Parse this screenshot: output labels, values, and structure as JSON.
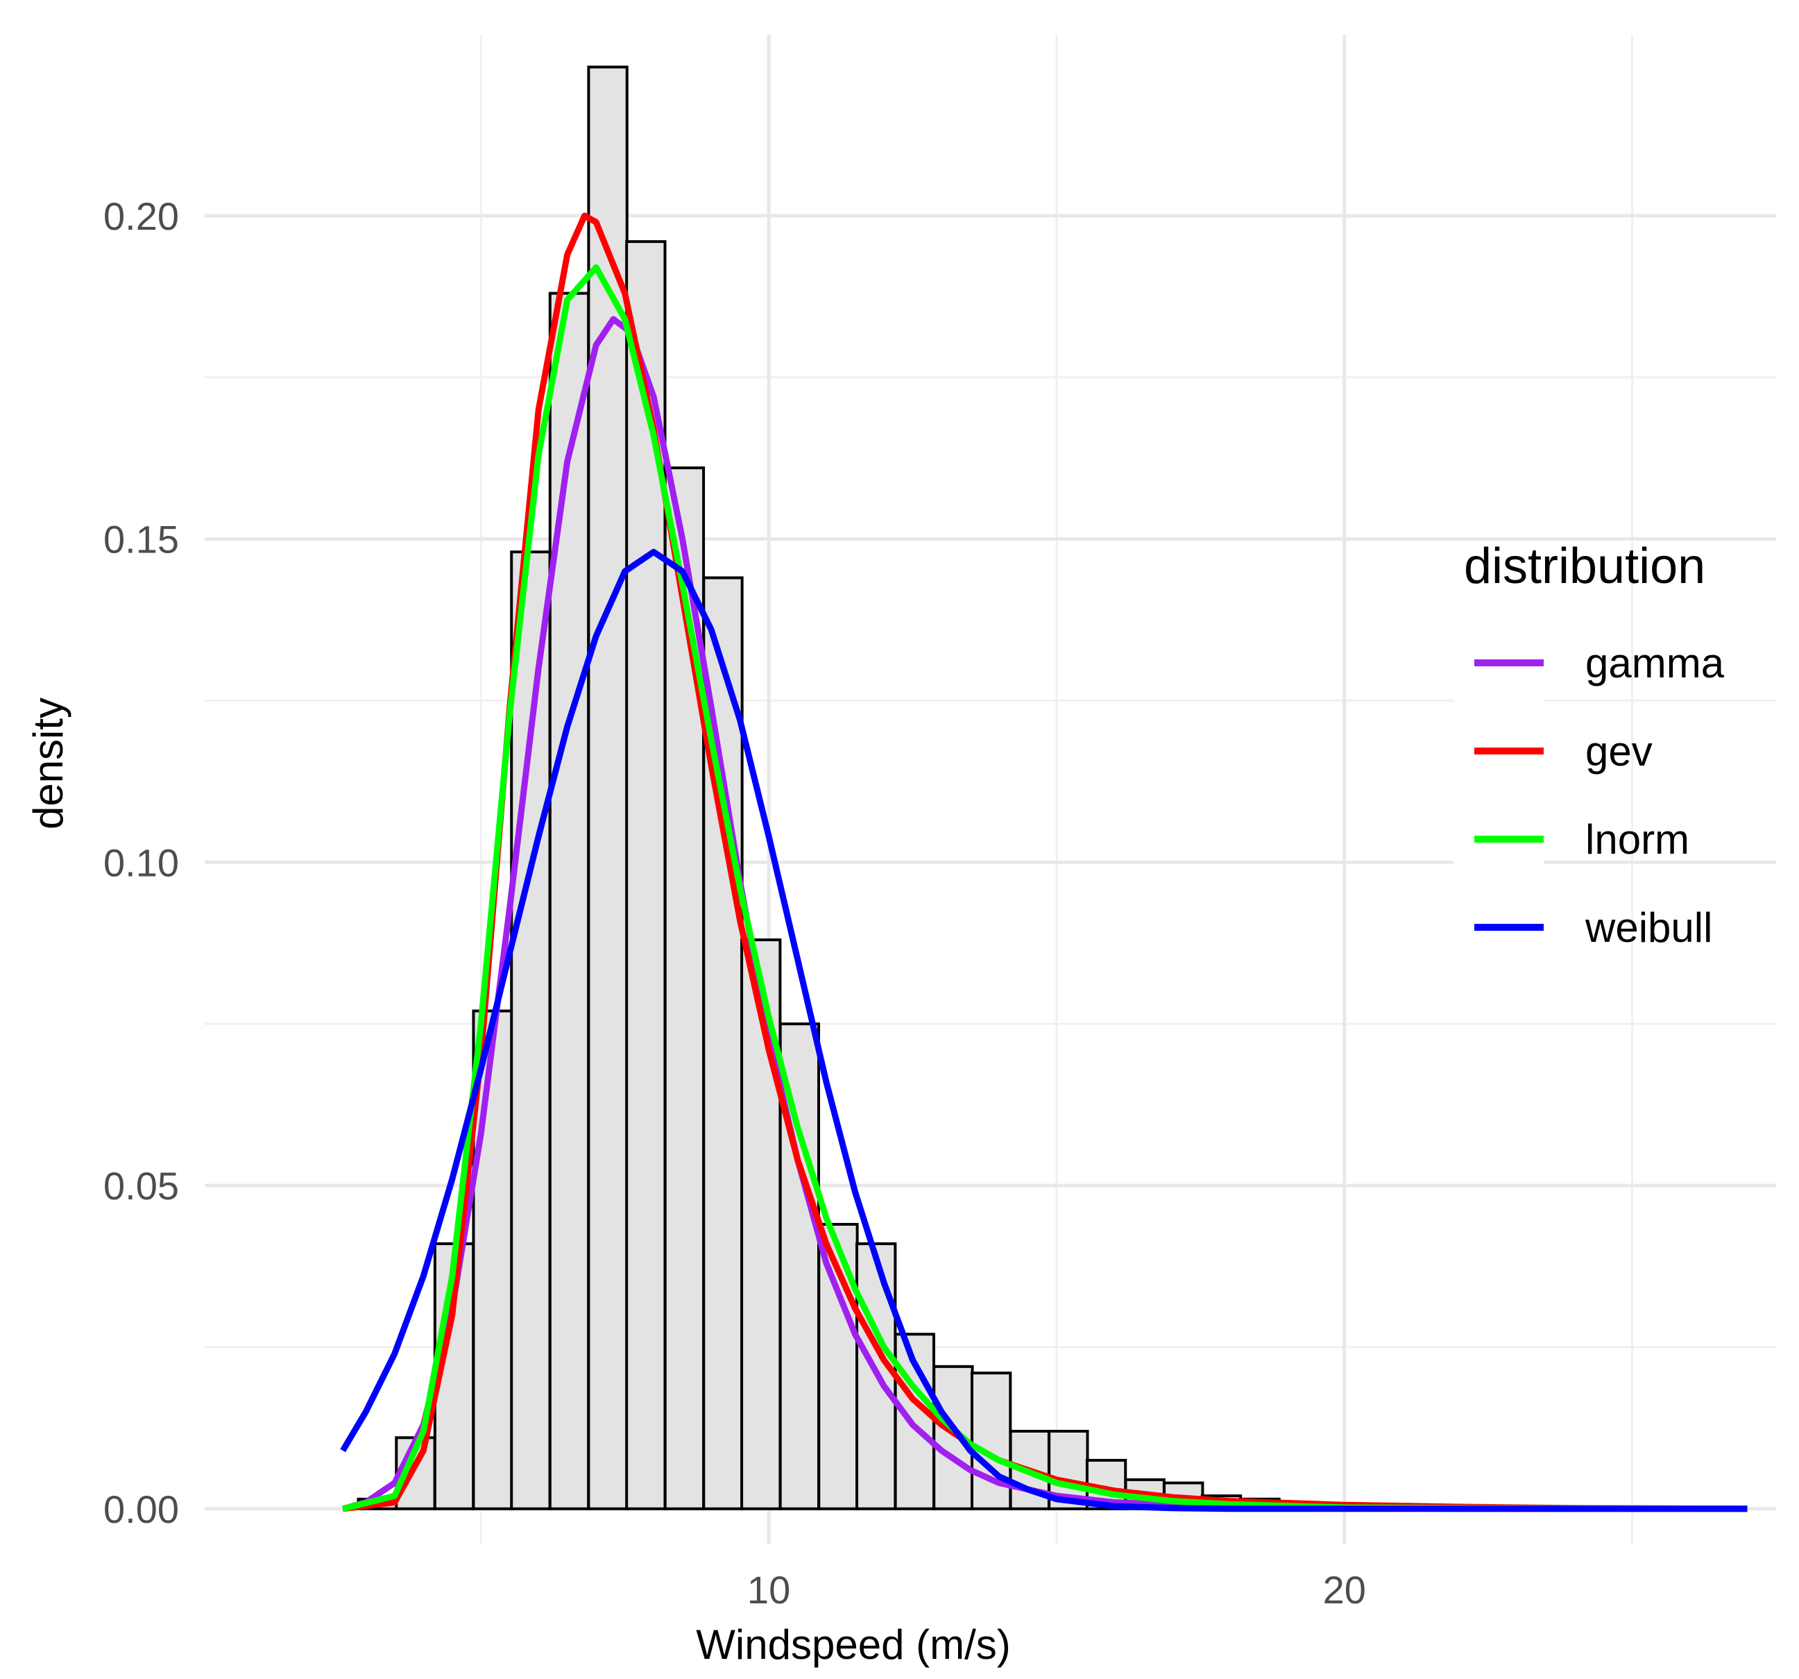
{
  "chart_data": {
    "type": "histogram+line",
    "title": "",
    "xlabel": "Windspeed (m/s)",
    "ylabel": "density",
    "xlim": [
      0.2,
      27.5
    ],
    "ylim": [
      -0.0055,
      0.228
    ],
    "x_ticks": [
      10,
      20
    ],
    "x_tick_labels": [
      "10",
      "20"
    ],
    "x_minor_ticks": [
      5,
      15,
      25
    ],
    "y_ticks": [
      0,
      0.05,
      0.1,
      0.15,
      0.2
    ],
    "y_tick_labels": [
      "0.00",
      "0.05",
      "0.10",
      "0.15",
      "0.20"
    ],
    "y_minor_ticks": [
      0.025,
      0.075,
      0.125,
      0.175
    ],
    "grid": true,
    "legend": {
      "title": "distribution",
      "position": "right"
    },
    "histogram": {
      "fill": "#e3e3e3",
      "stroke": "#000000",
      "bin_width": 0.667,
      "bins": [
        {
          "x0": 2.2,
          "density": 0.0
        },
        {
          "x0": 2.87,
          "density": 0.0015
        },
        {
          "x0": 3.53,
          "density": 0.011
        },
        {
          "x0": 4.2,
          "density": 0.041
        },
        {
          "x0": 4.87,
          "density": 0.077
        },
        {
          "x0": 5.53,
          "density": 0.148
        },
        {
          "x0": 6.2,
          "density": 0.188
        },
        {
          "x0": 6.87,
          "density": 0.223
        },
        {
          "x0": 7.53,
          "density": 0.196
        },
        {
          "x0": 8.2,
          "density": 0.161
        },
        {
          "x0": 8.87,
          "density": 0.144
        },
        {
          "x0": 9.53,
          "density": 0.088
        },
        {
          "x0": 10.2,
          "density": 0.075
        },
        {
          "x0": 10.87,
          "density": 0.044
        },
        {
          "x0": 11.53,
          "density": 0.041
        },
        {
          "x0": 12.2,
          "density": 0.027
        },
        {
          "x0": 12.87,
          "density": 0.022
        },
        {
          "x0": 13.53,
          "density": 0.021
        },
        {
          "x0": 14.2,
          "density": 0.012
        },
        {
          "x0": 14.87,
          "density": 0.012
        },
        {
          "x0": 15.53,
          "density": 0.0075
        },
        {
          "x0": 16.2,
          "density": 0.0045
        },
        {
          "x0": 16.87,
          "density": 0.004
        },
        {
          "x0": 17.53,
          "density": 0.002
        },
        {
          "x0": 18.2,
          "density": 0.0015
        },
        {
          "x0": 18.87,
          "density": 0.001
        },
        {
          "x0": 19.53,
          "density": 0.0005
        },
        {
          "x0": 20.2,
          "density": 0.0005
        },
        {
          "x0": 20.87,
          "density": 0.0003
        },
        {
          "x0": 21.53,
          "density": 0.0002
        },
        {
          "x0": 22.2,
          "density": 0.0002
        },
        {
          "x0": 22.87,
          "density": 0.0001
        },
        {
          "x0": 23.53,
          "density": 0.0
        },
        {
          "x0": 24.2,
          "density": 0.0
        },
        {
          "x0": 24.87,
          "density": 0.0
        },
        {
          "x0": 25.53,
          "density": 0.0
        },
        {
          "x0": 26.2,
          "density": 0.0
        },
        {
          "x0": 26.87,
          "density": 0.0
        }
      ]
    },
    "series": [
      {
        "name": "gamma",
        "color": "#a020f0",
        "points": [
          [
            2.6,
            0.0
          ],
          [
            3.0,
            0.001
          ],
          [
            3.5,
            0.004
          ],
          [
            4.0,
            0.013
          ],
          [
            4.5,
            0.031
          ],
          [
            5.0,
            0.058
          ],
          [
            5.5,
            0.093
          ],
          [
            6.0,
            0.13
          ],
          [
            6.5,
            0.162
          ],
          [
            7.0,
            0.18
          ],
          [
            7.3,
            0.184
          ],
          [
            7.6,
            0.182
          ],
          [
            8.0,
            0.172
          ],
          [
            8.5,
            0.15
          ],
          [
            9.0,
            0.124
          ],
          [
            9.5,
            0.097
          ],
          [
            10.0,
            0.073
          ],
          [
            10.5,
            0.054
          ],
          [
            11.0,
            0.038
          ],
          [
            11.5,
            0.027
          ],
          [
            12.0,
            0.019
          ],
          [
            12.5,
            0.013
          ],
          [
            13.0,
            0.009
          ],
          [
            13.5,
            0.006
          ],
          [
            14.0,
            0.004
          ],
          [
            15.0,
            0.002
          ],
          [
            16.0,
            0.001
          ],
          [
            18.0,
            0.0003
          ],
          [
            20.0,
            0.0001
          ],
          [
            22.0,
            0.0
          ],
          [
            24.0,
            0.0
          ],
          [
            27.0,
            0.0
          ]
        ]
      },
      {
        "name": "gev",
        "color": "#ff0000",
        "points": [
          [
            2.6,
            0.0
          ],
          [
            3.5,
            0.001
          ],
          [
            4.0,
            0.009
          ],
          [
            4.5,
            0.03
          ],
          [
            5.0,
            0.07
          ],
          [
            5.5,
            0.124
          ],
          [
            6.0,
            0.17
          ],
          [
            6.5,
            0.194
          ],
          [
            6.8,
            0.2
          ],
          [
            7.0,
            0.199
          ],
          [
            7.5,
            0.188
          ],
          [
            8.0,
            0.167
          ],
          [
            8.5,
            0.141
          ],
          [
            9.0,
            0.115
          ],
          [
            9.5,
            0.091
          ],
          [
            10.0,
            0.071
          ],
          [
            10.5,
            0.054
          ],
          [
            11.0,
            0.041
          ],
          [
            11.5,
            0.031
          ],
          [
            12.0,
            0.023
          ],
          [
            12.5,
            0.017
          ],
          [
            13.0,
            0.013
          ],
          [
            13.5,
            0.01
          ],
          [
            14.0,
            0.0075
          ],
          [
            15.0,
            0.0045
          ],
          [
            16.0,
            0.0028
          ],
          [
            17.0,
            0.0018
          ],
          [
            18.0,
            0.0012
          ],
          [
            20.0,
            0.0006
          ],
          [
            22.0,
            0.0003
          ],
          [
            24.0,
            0.0001
          ],
          [
            27.0,
            0.0
          ]
        ]
      },
      {
        "name": "lnorm",
        "color": "#00ff00",
        "points": [
          [
            2.6,
            0.0
          ],
          [
            3.5,
            0.002
          ],
          [
            4.0,
            0.012
          ],
          [
            4.5,
            0.036
          ],
          [
            5.0,
            0.075
          ],
          [
            5.5,
            0.123
          ],
          [
            6.0,
            0.163
          ],
          [
            6.5,
            0.187
          ],
          [
            7.0,
            0.192
          ],
          [
            7.5,
            0.184
          ],
          [
            8.0,
            0.166
          ],
          [
            8.5,
            0.143
          ],
          [
            9.0,
            0.119
          ],
          [
            9.5,
            0.096
          ],
          [
            10.0,
            0.076
          ],
          [
            10.5,
            0.059
          ],
          [
            11.0,
            0.045
          ],
          [
            11.5,
            0.034
          ],
          [
            12.0,
            0.025
          ],
          [
            12.5,
            0.019
          ],
          [
            13.0,
            0.014
          ],
          [
            13.5,
            0.01
          ],
          [
            14.0,
            0.0075
          ],
          [
            15.0,
            0.004
          ],
          [
            16.0,
            0.0022
          ],
          [
            17.0,
            0.0012
          ],
          [
            18.0,
            0.0007
          ],
          [
            20.0,
            0.0002
          ],
          [
            22.0,
            0.0001
          ],
          [
            27.0,
            0.0
          ]
        ]
      },
      {
        "name": "weibull",
        "color": "#0000ff",
        "points": [
          [
            2.6,
            0.009
          ],
          [
            3.0,
            0.015
          ],
          [
            3.5,
            0.024
          ],
          [
            4.0,
            0.036
          ],
          [
            4.5,
            0.051
          ],
          [
            5.0,
            0.068
          ],
          [
            5.5,
            0.086
          ],
          [
            6.0,
            0.104
          ],
          [
            6.5,
            0.121
          ],
          [
            7.0,
            0.135
          ],
          [
            7.5,
            0.145
          ],
          [
            8.0,
            0.148
          ],
          [
            8.5,
            0.145
          ],
          [
            9.0,
            0.136
          ],
          [
            9.5,
            0.122
          ],
          [
            10.0,
            0.104
          ],
          [
            10.5,
            0.085
          ],
          [
            11.0,
            0.066
          ],
          [
            11.5,
            0.049
          ],
          [
            12.0,
            0.035
          ],
          [
            12.5,
            0.023
          ],
          [
            13.0,
            0.015
          ],
          [
            13.5,
            0.009
          ],
          [
            14.0,
            0.005
          ],
          [
            14.5,
            0.003
          ],
          [
            15.0,
            0.0015
          ],
          [
            16.0,
            0.0004
          ],
          [
            17.0,
            0.0001
          ],
          [
            18.0,
            0.0
          ],
          [
            27.0,
            0.0
          ]
        ]
      }
    ]
  }
}
